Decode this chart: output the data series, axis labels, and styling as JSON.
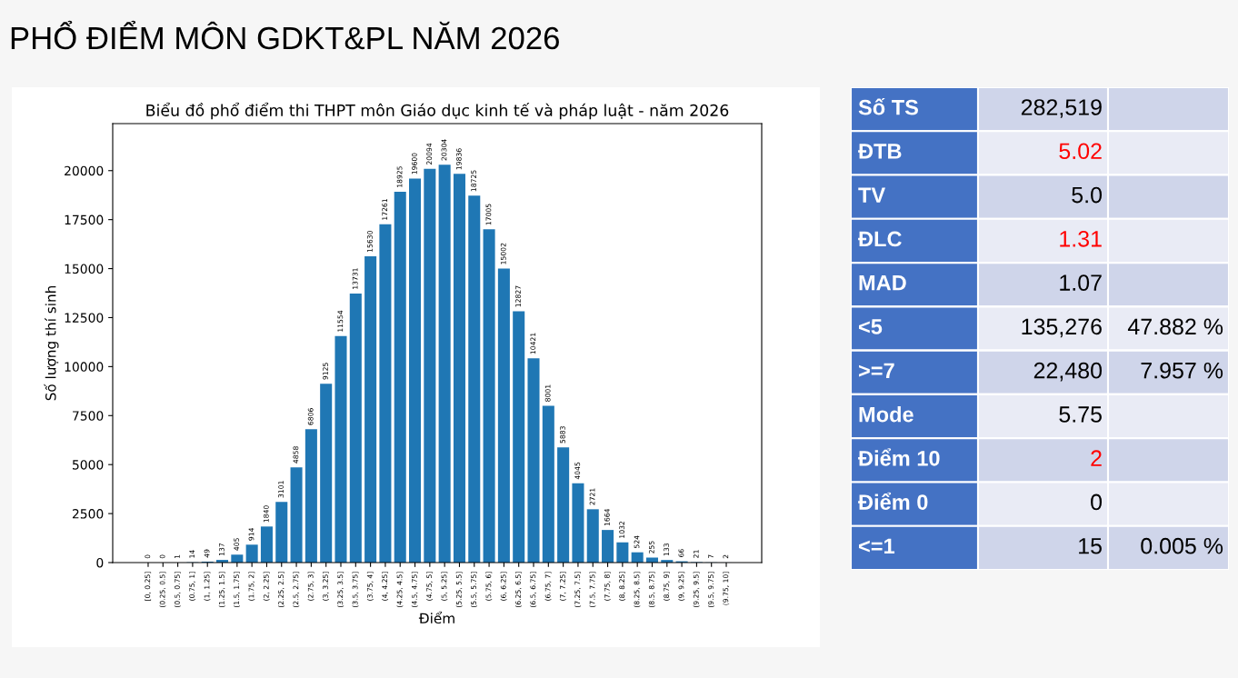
{
  "chart_data": [
    {
      "type": "bar",
      "title": "PHỔ ĐIỂM MÔN GDKT&PL NĂM 2026",
      "subtitle": "Biểu đồ phổ điểm thi THPT môn Giáo dục kinh tế và pháp luật - năm 2026",
      "xlabel": "Điểm",
      "ylabel": "Số lượng thí sinh",
      "categories": [
        "[0, 0.25]",
        "(0.25, 0.5]",
        "(0.5, 0.75]",
        "(0.75, 1]",
        "(1, 1.25]",
        "(1.25, 1.5]",
        "(1.5, 1.75]",
        "(1.75, 2]",
        "(2, 2.25]",
        "(2.25, 2.5]",
        "(2.5, 2.75]",
        "(2.75, 3]",
        "(3, 3.25]",
        "(3.25, 3.5]",
        "(3.5, 3.75]",
        "(3.75, 4]",
        "(4, 4.25]",
        "(4.25, 4.5]",
        "(4.5, 4.75]",
        "(4.75, 5]",
        "(5, 5.25]",
        "(5.25, 5.5]",
        "(5.5, 5.75]",
        "(5.75, 6]",
        "(6, 6.25]",
        "(6.25, 6.5]",
        "(6.5, 6.75]",
        "(6.75, 7]",
        "(7, 7.25]",
        "(7.25, 7.5]",
        "(7.5, 7.75]",
        "(7.75, 8]",
        "(8, 8.25]",
        "(8.25, 8.5]",
        "(8.5, 8.75]",
        "(8.75, 9]",
        "(9, 9.25]",
        "(9.25, 9.5]",
        "(9.5, 9.75]",
        "(9.75, 10]"
      ],
      "values": [
        0,
        0,
        1,
        14,
        49,
        137,
        405,
        914,
        1840,
        3101,
        4858,
        6806,
        9125,
        11554,
        13731,
        15630,
        17261,
        18925,
        19600,
        20094,
        20304,
        19836,
        18725,
        17005,
        15002,
        12827,
        10421,
        8001,
        5883,
        4045,
        2721,
        1664,
        1032,
        524,
        255,
        133,
        66,
        21,
        7,
        2
      ],
      "color": "#1f77b4",
      "data_labels": true,
      "ylim": [
        0,
        22400
      ],
      "yticks": [
        0,
        2500,
        5000,
        7500,
        10000,
        12500,
        15000,
        17500,
        20000
      ],
      "grid": false,
      "legend": false
    },
    {
      "type": "other",
      "cells": [
        [
          "Số TS",
          "282,519",
          null
        ],
        [
          "ĐTB",
          "5.02",
          null
        ],
        [
          "TV",
          "5.0",
          null
        ],
        [
          "ĐLC",
          "1.31",
          null
        ],
        [
          "MAD",
          "1.07",
          null
        ],
        [
          "<5",
          "135,276",
          "47.882 %"
        ],
        [
          ">=7",
          "22,480",
          "7.957 %"
        ],
        [
          "Mode",
          "5.75",
          null
        ],
        [
          "Điểm 10",
          "2",
          null
        ],
        [
          "Điểm 0",
          "0",
          null
        ],
        [
          "<=1",
          "15",
          "0.005 %"
        ]
      ],
      "colors": [
        "#000000",
        "#ff0000",
        "#000000",
        "#ff0000",
        "#000000",
        "#000000",
        "#000000",
        "#000000",
        "#ff0000",
        "#000000",
        "#000000"
      ]
    }
  ]
}
